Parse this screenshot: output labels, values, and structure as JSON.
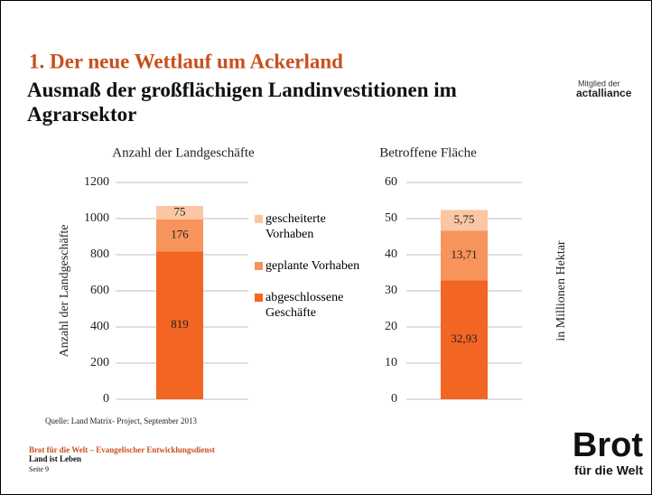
{
  "slide": {
    "heading": "1. Der neue Wettlauf um Ackerland",
    "title": "Ausmaß der großflächigen Landinvestitionen im Agrarsektor",
    "badge_top": "Mitglied der",
    "badge_name": "actalliance",
    "source": "Quelle: Land Matrix- Project, September 2013",
    "footer_org": "Brot für die Welt – Evangelischer Entwicklungsdienst",
    "footer_motto": "Land ist Leben",
    "page": "Seite 9",
    "logo_top": "Brot",
    "logo_bottom": "für die Welt"
  },
  "chart_data": [
    {
      "type": "bar",
      "stacked": true,
      "title": "Anzahl der Landgeschäfte",
      "y_label": "Anzahl der Landgeschäfte",
      "categories": [
        null
      ],
      "series": [
        {
          "name": "abgeschlossene Geschäfte",
          "color": "#f26522",
          "values": [
            819
          ]
        },
        {
          "name": "geplante Vorhaben",
          "color": "#f7945c",
          "values": [
            176
          ]
        },
        {
          "name": "gescheiterte Vorhaben",
          "color": "#fbc6a3",
          "values": [
            75
          ]
        }
      ],
      "ylim": [
        0,
        1200
      ],
      "yticks": [
        0,
        200,
        400,
        600,
        800,
        1000,
        1200
      ],
      "grid": true,
      "legend": "right"
    },
    {
      "type": "bar",
      "stacked": true,
      "title": "Betroffene Fläche",
      "y_label": "in Millionen Hektar",
      "categories": [
        null
      ],
      "series": [
        {
          "color": "#f26522",
          "values": [
            32.93
          ],
          "value_labels": [
            "32,93"
          ]
        },
        {
          "color": "#f7945c",
          "values": [
            13.71
          ],
          "value_labels": [
            "13,71"
          ]
        },
        {
          "color": "#fbc6a3",
          "values": [
            5.75
          ],
          "value_labels": [
            "5,75"
          ]
        }
      ],
      "ylim": [
        0,
        60
      ],
      "yticks": [
        0,
        10,
        20,
        30,
        40,
        50,
        60
      ],
      "grid": true
    }
  ]
}
